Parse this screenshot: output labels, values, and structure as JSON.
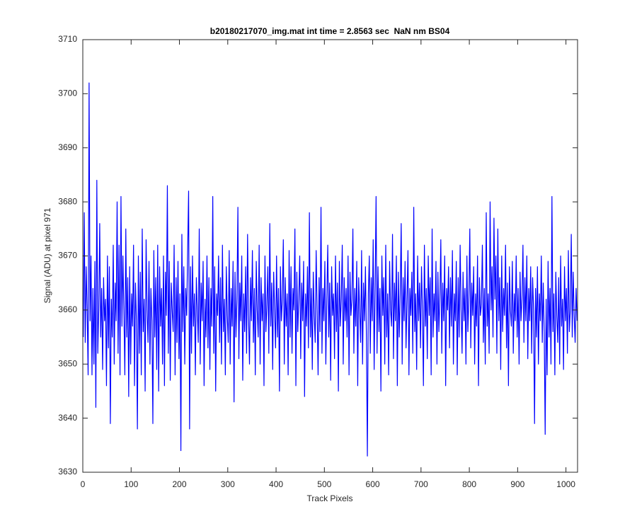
{
  "chart_data": {
    "type": "line",
    "title": "b20180217070_img.mat int time = 2.8563 sec  NaN nm BS04",
    "xlabel": "Track Pixels",
    "ylabel": "Signal (ADU) at pixel 971",
    "color": "#0000ff",
    "xlim": [
      0,
      1024
    ],
    "ylim": [
      3630,
      3710
    ],
    "xticks": [
      0,
      100,
      200,
      300,
      400,
      500,
      600,
      700,
      800,
      900,
      1000
    ],
    "yticks": [
      3630,
      3640,
      3650,
      3660,
      3670,
      3680,
      3690,
      3700,
      3710
    ],
    "x": [
      1,
      3,
      5,
      7,
      9,
      11,
      13,
      15,
      17,
      19,
      21,
      23,
      25,
      27,
      29,
      31,
      33,
      35,
      37,
      39,
      41,
      43,
      45,
      47,
      49,
      51,
      53,
      55,
      57,
      59,
      61,
      63,
      65,
      67,
      69,
      71,
      73,
      75,
      77,
      79,
      81,
      83,
      85,
      87,
      89,
      91,
      93,
      95,
      97,
      99,
      101,
      103,
      105,
      107,
      109,
      111,
      113,
      115,
      117,
      119,
      121,
      123,
      125,
      127,
      129,
      131,
      133,
      135,
      137,
      139,
      141,
      143,
      145,
      147,
      149,
      151,
      153,
      155,
      157,
      159,
      161,
      163,
      165,
      167,
      169,
      171,
      173,
      175,
      177,
      179,
      181,
      183,
      185,
      187,
      189,
      191,
      193,
      195,
      197,
      199,
      201,
      203,
      205,
      207,
      209,
      211,
      213,
      215,
      217,
      219,
      221,
      223,
      225,
      227,
      229,
      231,
      233,
      235,
      237,
      239,
      241,
      243,
      245,
      247,
      249,
      251,
      253,
      255,
      257,
      259,
      261,
      263,
      265,
      267,
      269,
      271,
      273,
      275,
      277,
      279,
      281,
      283,
      285,
      287,
      289,
      291,
      293,
      295,
      297,
      299,
      301,
      303,
      305,
      307,
      309,
      311,
      313,
      315,
      317,
      319,
      321,
      323,
      325,
      327,
      329,
      331,
      333,
      335,
      337,
      339,
      341,
      343,
      345,
      347,
      349,
      351,
      353,
      355,
      357,
      359,
      361,
      363,
      365,
      367,
      369,
      371,
      373,
      375,
      377,
      379,
      381,
      383,
      385,
      387,
      389,
      391,
      393,
      395,
      397,
      399,
      401,
      403,
      405,
      407,
      409,
      411,
      413,
      415,
      417,
      419,
      421,
      423,
      425,
      427,
      429,
      431,
      433,
      435,
      437,
      439,
      441,
      443,
      445,
      447,
      449,
      451,
      453,
      455,
      457,
      459,
      461,
      463,
      465,
      467,
      469,
      471,
      473,
      475,
      477,
      479,
      481,
      483,
      485,
      487,
      489,
      491,
      493,
      495,
      497,
      499,
      501,
      503,
      505,
      507,
      509,
      511,
      513,
      515,
      517,
      519,
      521,
      523,
      525,
      527,
      529,
      531,
      533,
      535,
      537,
      539,
      541,
      543,
      545,
      547,
      549,
      551,
      553,
      555,
      557,
      559,
      561,
      563,
      565,
      567,
      569,
      571,
      573,
      575,
      577,
      579,
      581,
      583,
      585,
      587,
      589,
      591,
      593,
      595,
      597,
      599,
      601,
      603,
      605,
      607,
      609,
      611,
      613,
      615,
      617,
      619,
      621,
      623,
      625,
      627,
      629,
      631,
      633,
      635,
      637,
      639,
      641,
      643,
      645,
      647,
      649,
      651,
      653,
      655,
      657,
      659,
      661,
      663,
      665,
      667,
      669,
      671,
      673,
      675,
      677,
      679,
      681,
      683,
      685,
      687,
      689,
      691,
      693,
      695,
      697,
      699,
      701,
      703,
      705,
      707,
      709,
      711,
      713,
      715,
      717,
      719,
      721,
      723,
      725,
      727,
      729,
      731,
      733,
      735,
      737,
      739,
      741,
      743,
      745,
      747,
      749,
      751,
      753,
      755,
      757,
      759,
      761,
      763,
      765,
      767,
      769,
      771,
      773,
      775,
      777,
      779,
      781,
      783,
      785,
      787,
      789,
      791,
      793,
      795,
      797,
      799,
      801,
      803,
      805,
      807,
      809,
      811,
      813,
      815,
      817,
      819,
      821,
      823,
      825,
      827,
      829,
      831,
      833,
      835,
      837,
      839,
      841,
      843,
      845,
      847,
      849,
      851,
      853,
      855,
      857,
      859,
      861,
      863,
      865,
      867,
      869,
      871,
      873,
      875,
      877,
      879,
      881,
      883,
      885,
      887,
      889,
      891,
      893,
      895,
      897,
      899,
      901,
      903,
      905,
      907,
      909,
      911,
      913,
      915,
      917,
      919,
      921,
      923,
      925,
      927,
      929,
      931,
      933,
      935,
      937,
      939,
      941,
      943,
      945,
      947,
      949,
      951,
      953,
      955,
      957,
      959,
      961,
      963,
      965,
      967,
      969,
      971,
      973,
      975,
      977,
      979,
      981,
      983,
      985,
      987,
      989,
      991,
      993,
      995,
      997,
      999,
      1001,
      1003,
      1005,
      1007,
      1009,
      1011,
      1013,
      1015,
      1017,
      1019,
      1021,
      1023
    ],
    "values": [
      3655,
      3678,
      3654,
      3668,
      3660,
      3648,
      3702,
      3658,
      3670,
      3648,
      3664,
      3650,
      3669,
      3642,
      3684,
      3652,
      3660,
      3676,
      3655,
      3664,
      3649,
      3666,
      3658,
      3662,
      3646,
      3670,
      3653,
      3668,
      3639,
      3662,
      3655,
      3672,
      3650,
      3665,
      3658,
      3680,
      3652,
      3672,
      3648,
      3681,
      3657,
      3670,
      3660,
      3648,
      3675,
      3655,
      3666,
      3644,
      3668,
      3650,
      3663,
      3657,
      3672,
      3646,
      3665,
      3658,
      3638,
      3670,
      3652,
      3667,
      3648,
      3675,
      3656,
      3662,
      3645,
      3673,
      3660,
      3654,
      3669,
      3650,
      3664,
      3658,
      3639,
      3671,
      3655,
      3666,
      3649,
      3672,
      3645,
      3668,
      3657,
      3664,
      3650,
      3670,
      3646,
      3667,
      3659,
      3683,
      3652,
      3669,
      3647,
      3665,
      3660,
      3656,
      3672,
      3648,
      3666,
      3654,
      3669,
      3651,
      3663,
      3634,
      3674,
      3656,
      3668,
      3650,
      3664,
      3659,
      3671,
      3682,
      3638,
      3668,
      3652,
      3670,
      3657,
      3663,
      3648,
      3666,
      3660,
      3654,
      3675,
      3650,
      3665,
      3658,
      3669,
      3646,
      3662,
      3655,
      3670,
      3653,
      3666,
      3649,
      3664,
      3657,
      3681,
      3652,
      3668,
      3645,
      3663,
      3659,
      3670,
      3654,
      3666,
      3650,
      3672,
      3656,
      3662,
      3648,
      3668,
      3659,
      3654,
      3671,
      3650,
      3664,
      3657,
      3669,
      3643,
      3667,
      3655,
      3662,
      3679,
      3651,
      3665,
      3658,
      3670,
      3647,
      3663,
      3656,
      3668,
      3652,
      3674,
      3659,
      3650,
      3666,
      3658,
      3671,
      3654,
      3664,
      3648,
      3669,
      3660,
      3655,
      3672,
      3650,
      3666,
      3658,
      3663,
      3646,
      3670,
      3656,
      3661,
      3668,
      3652,
      3676,
      3657,
      3665,
      3649,
      3667,
      3660,
      3653,
      3670,
      3655,
      3664,
      3645,
      3668,
      3658,
      3662,
      3673,
      3650,
      3666,
      3657,
      3663,
      3648,
      3671,
      3655,
      3668,
      3652,
      3664,
      3660,
      3675,
      3646,
      3667,
      3656,
      3662,
      3670,
      3651,
      3665,
      3658,
      3669,
      3644,
      3663,
      3657,
      3668,
      3653,
      3678,
      3655,
      3664,
      3649,
      3667,
      3659,
      3654,
      3671,
      3660,
      3648,
      3666,
      3656,
      3679,
      3652,
      3664,
      3658,
      3669,
      3650,
      3662,
      3672,
      3655,
      3665,
      3647,
      3668,
      3659,
      3663,
      3651,
      3670,
      3656,
      3665,
      3645,
      3669,
      3657,
      3662,
      3672,
      3650,
      3666,
      3658,
      3664,
      3655,
      3670,
      3648,
      3667,
      3659,
      3662,
      3675,
      3652,
      3664,
      3657,
      3669,
      3646,
      3666,
      3660,
      3654,
      3671,
      3650,
      3665,
      3658,
      3668,
      3655,
      3633,
      3663,
      3670,
      3652,
      3666,
      3658,
      3673,
      3649,
      3664,
      3681,
      3652,
      3668,
      3656,
      3664,
      3645,
      3670,
      3659,
      3666,
      3650,
      3672,
      3655,
      3663,
      3648,
      3669,
      3660,
      3657,
      3674,
      3651,
      3665,
      3658,
      3670,
      3646,
      3667,
      3655,
      3663,
      3676,
      3650,
      3666,
      3658,
      3669,
      3653,
      3662,
      3671,
      3648,
      3664,
      3659,
      3667,
      3652,
      3679,
      3656,
      3663,
      3649,
      3670,
      3658,
      3665,
      3653,
      3668,
      3660,
      3646,
      3672,
      3657,
      3664,
      3651,
      3670,
      3659,
      3666,
      3648,
      3675,
      3655,
      3663,
      3658,
      3669,
      3650,
      3667,
      3656,
      3662,
      3673,
      3652,
      3665,
      3658,
      3670,
      3646,
      3664,
      3660,
      3668,
      3653,
      3666,
      3657,
      3671,
      3650,
      3663,
      3658,
      3669,
      3648,
      3666,
      3655,
      3672,
      3660,
      3652,
      3667,
      3658,
      3664,
      3650,
      3670,
      3656,
      3662,
      3675,
      3653,
      3665,
      3659,
      3668,
      3650,
      3663,
      3657,
      3670,
      3646,
      3666,
      3659,
      3661,
      3672,
      3654,
      3664,
      3650,
      3678,
      3657,
      3663,
      3652,
      3680,
      3660,
      3668,
      3655,
      3677,
      3662,
      3670,
      3652,
      3675,
      3658,
      3666,
      3649,
      3670,
      3656,
      3664,
      3659,
      3672,
      3653,
      3665,
      3646,
      3668,
      3660,
      3657,
      3669,
      3652,
      3663,
      3658,
      3670,
      3655,
      3664,
      3650,
      3667,
      3658,
      3662,
      3672,
      3654,
      3666,
      3658,
      3670,
      3651,
      3664,
      3658,
      3668,
      3652,
      3666,
      3660,
      3639,
      3664,
      3655,
      3668,
      3650,
      3663,
      3658,
      3670,
      3654,
      3665,
      3656,
      3637,
      3662,
      3648,
      3669,
      3655,
      3664,
      3650,
      3681,
      3656,
      3663,
      3648,
      3667,
      3659,
      3654,
      3666,
      3650,
      3670,
      3657,
      3662,
      3649,
      3668,
      3658,
      3664,
      3652,
      3671,
      3656,
      3660,
      3674,
      3655,
      3667,
      3659,
      3654,
      3664,
      3658
    ]
  }
}
